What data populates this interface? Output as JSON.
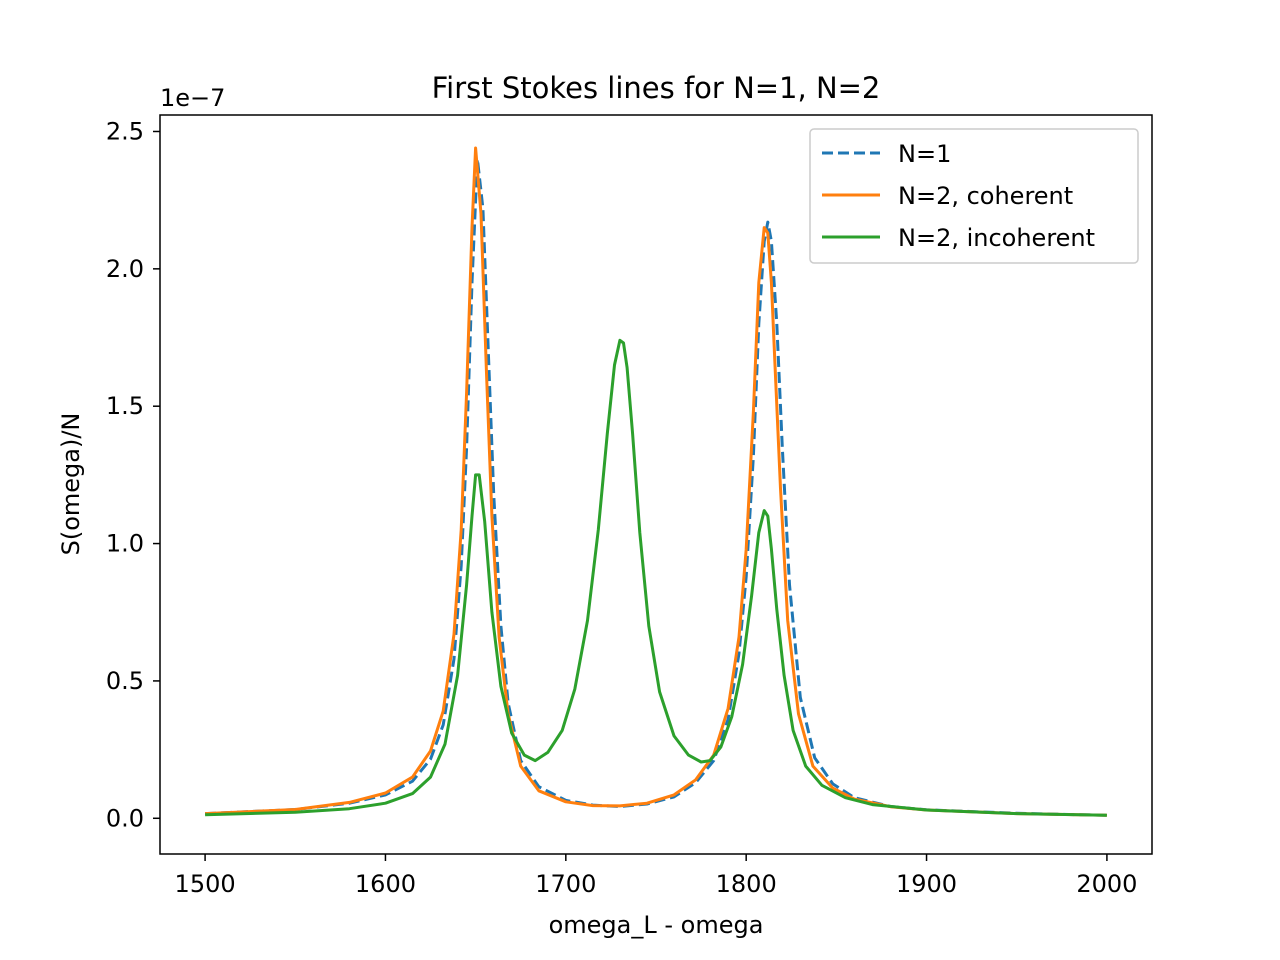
{
  "chart_data": {
    "type": "line",
    "title": "First Stokes lines for N=1, N=2",
    "xlabel": "omega_L - omega",
    "ylabel": "S(omega)/N",
    "y_scale_label": "1e−7",
    "xlim": [
      1475,
      2025
    ],
    "ylim": [
      -0.13,
      2.56
    ],
    "xticks": [
      1500,
      1600,
      1700,
      1800,
      1900,
      2000
    ],
    "xtick_labels": [
      "1500",
      "1600",
      "1700",
      "1800",
      "1900",
      "2000"
    ],
    "yticks": [
      0.0,
      0.5,
      1.0,
      1.5,
      2.0,
      2.5
    ],
    "ytick_labels": [
      "0.0",
      "0.5",
      "1.0",
      "1.5",
      "2.0",
      "2.5"
    ],
    "grid": false,
    "legend_position": "top-right",
    "series": [
      {
        "name": "N=1",
        "color": "#1f77b4",
        "style": "dashed",
        "x": [
          1500,
          1550,
          1580,
          1600,
          1615,
          1625,
          1632,
          1638,
          1642,
          1645,
          1648,
          1651,
          1654,
          1657,
          1660,
          1664,
          1668,
          1675,
          1685,
          1700,
          1715,
          1730,
          1745,
          1760,
          1772,
          1782,
          1790,
          1796,
          1800,
          1804,
          1807,
          1810,
          1812,
          1814,
          1817,
          1820,
          1824,
          1830,
          1838,
          1848,
          1860,
          1880,
          1900,
          1950,
          2000
        ],
        "y": [
          0.017,
          0.032,
          0.055,
          0.085,
          0.135,
          0.215,
          0.34,
          0.58,
          0.92,
          1.35,
          1.95,
          2.4,
          2.22,
          1.7,
          1.18,
          0.7,
          0.42,
          0.21,
          0.115,
          0.065,
          0.048,
          0.043,
          0.052,
          0.078,
          0.13,
          0.21,
          0.36,
          0.6,
          0.88,
          1.32,
          1.8,
          2.1,
          2.17,
          2.1,
          1.8,
          1.35,
          0.85,
          0.44,
          0.22,
          0.125,
          0.075,
          0.043,
          0.031,
          0.018,
          0.011
        ]
      },
      {
        "name": "N=2, coherent",
        "color": "#ff7f0e",
        "style": "solid",
        "x": [
          1500,
          1550,
          1580,
          1600,
          1615,
          1625,
          1632,
          1638,
          1642,
          1645,
          1648,
          1650,
          1653,
          1656,
          1659,
          1663,
          1668,
          1675,
          1685,
          1700,
          1715,
          1730,
          1745,
          1760,
          1772,
          1782,
          1790,
          1796,
          1800,
          1804,
          1807,
          1810,
          1812,
          1814,
          1816,
          1819,
          1823,
          1829,
          1837,
          1848,
          1860,
          1880,
          1900,
          1950,
          2000
        ],
        "y": [
          0.017,
          0.032,
          0.058,
          0.092,
          0.15,
          0.245,
          0.39,
          0.67,
          1.05,
          1.55,
          2.15,
          2.44,
          2.2,
          1.62,
          1.1,
          0.66,
          0.38,
          0.19,
          0.1,
          0.06,
          0.046,
          0.045,
          0.055,
          0.085,
          0.14,
          0.23,
          0.4,
          0.66,
          0.98,
          1.48,
          1.95,
          2.15,
          2.13,
          1.95,
          1.65,
          1.2,
          0.72,
          0.38,
          0.19,
          0.11,
          0.07,
          0.042,
          0.03,
          0.017,
          0.011
        ]
      },
      {
        "name": "N=2, incoherent",
        "color": "#2ca02c",
        "style": "solid",
        "x": [
          1500,
          1550,
          1580,
          1600,
          1615,
          1625,
          1633,
          1640,
          1645,
          1648,
          1650,
          1652,
          1655,
          1659,
          1664,
          1670,
          1677,
          1683,
          1690,
          1698,
          1705,
          1712,
          1718,
          1723,
          1727,
          1730,
          1732,
          1734,
          1737,
          1741,
          1746,
          1752,
          1760,
          1768,
          1775,
          1780,
          1786,
          1792,
          1798,
          1803,
          1807,
          1810,
          1812,
          1814,
          1817,
          1821,
          1826,
          1833,
          1842,
          1855,
          1870,
          1900,
          1950,
          2000
        ],
        "y": [
          0.013,
          0.022,
          0.035,
          0.055,
          0.09,
          0.15,
          0.27,
          0.52,
          0.85,
          1.1,
          1.25,
          1.25,
          1.08,
          0.75,
          0.48,
          0.31,
          0.23,
          0.21,
          0.24,
          0.32,
          0.47,
          0.72,
          1.05,
          1.4,
          1.65,
          1.74,
          1.73,
          1.64,
          1.4,
          1.04,
          0.7,
          0.46,
          0.3,
          0.23,
          0.205,
          0.21,
          0.26,
          0.37,
          0.56,
          0.81,
          1.04,
          1.12,
          1.1,
          0.98,
          0.76,
          0.52,
          0.32,
          0.19,
          0.12,
          0.075,
          0.05,
          0.03,
          0.017,
          0.011
        ]
      }
    ]
  }
}
